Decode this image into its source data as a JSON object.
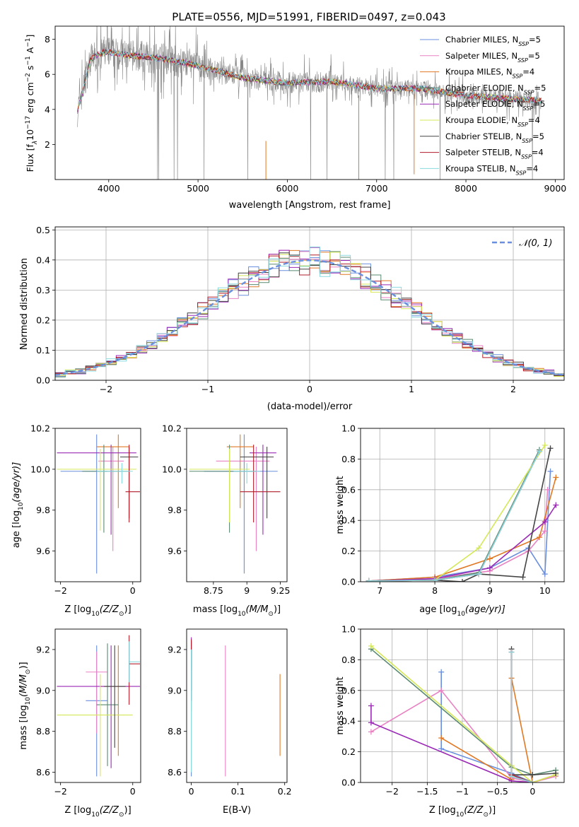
{
  "figure": {
    "title": "PLATE=0556, MJD=51991, FIBERID=0497, z=0.043"
  },
  "series_colors": [
    "#6a8fde",
    "#e882c3",
    "#e17924",
    "#5a8a72",
    "#9a2ab5",
    "#d6e85a",
    "#444444",
    "#b01c28",
    "#8ad9e0"
  ],
  "chart_data": [
    {
      "id": "spectrum",
      "type": "line",
      "xlabel": "wavelength [Angstrom, rest frame]",
      "ylabel": "Flux [f_λ10^-17 erg cm^-2 s^-1 A^-1]",
      "ylabel_parts": {
        "a": "Flux [f",
        "b": "λ",
        "c": "10",
        "d": "−17",
        "e": " erg cm",
        "f": "−2",
        "g": " s",
        "h": "−1",
        "i": " A",
        "j": "−1",
        "k": "]"
      },
      "xlim": [
        3400,
        9100
      ],
      "ylim": [
        0,
        8.75
      ],
      "xticks": [
        4000,
        5000,
        6000,
        7000,
        8000,
        9000
      ],
      "yticks": [
        2,
        4,
        6,
        8
      ],
      "observed_color": "#888888",
      "continuum_knots": {
        "x": [
          3650,
          3800,
          3950,
          4200,
          4600,
          5000,
          5500,
          6000,
          6500,
          7000,
          7500,
          8000,
          8500,
          8850
        ],
        "y": [
          3.9,
          6.9,
          7.3,
          7.1,
          6.9,
          6.5,
          5.8,
          5.5,
          5.6,
          5.2,
          5.2,
          4.8,
          4.6,
          4.5
        ]
      },
      "legend": [
        {
          "label": "Chabrier MILES, N",
          "n": "5"
        },
        {
          "label": "Salpeter MILES, N",
          "n": "5"
        },
        {
          "label": "Kroupa MILES, N",
          "n": "4"
        },
        {
          "label": "Chabrier ELODIE, N",
          "n": "5"
        },
        {
          "label": "Salpeter ELODIE, N",
          "n": "5"
        },
        {
          "label": "Kroupa ELODIE, N",
          "n": "4"
        },
        {
          "label": "Chabrier STELIB, N",
          "n": "5"
        },
        {
          "label": "Salpeter STELIB, N",
          "n": "4"
        },
        {
          "label": "Kroupa STELIB, N",
          "n": "4"
        }
      ],
      "legend_sub": "SSP",
      "legend_placement": "upper right"
    },
    {
      "id": "residuals",
      "type": "histogram",
      "xlabel": "(data-model)/error",
      "ylabel": "Normed distribution",
      "xlim": [
        -2.5,
        2.5
      ],
      "ylim": [
        0,
        0.51
      ],
      "xticks": [
        -2,
        -1,
        0,
        1,
        2
      ],
      "yticks": [
        0.0,
        0.1,
        0.2,
        0.3,
        0.4,
        0.5
      ],
      "grid": true,
      "bin_width": 0.1,
      "reference": {
        "label": "𝒩(0, 1)",
        "mean": 0,
        "sigma": 1
      },
      "legend_placement": "upper right"
    },
    {
      "id": "age_vs_Z",
      "type": "errorbar",
      "xlabel": "Z [log10(Z/Z⊙)]",
      "ylabel": "age  [log10(age/yr)]",
      "xlabel_parts": {
        "a": "Z [log",
        "b": "10",
        "c": "(Z/Z",
        "d": "⊙",
        "e": ")]"
      },
      "ylabel_parts": {
        "a": "age  [log",
        "b": "10",
        "c": "(age/yr)]"
      },
      "xlim": [
        -2.15,
        0.22
      ],
      "ylim": [
        9.45,
        10.2
      ],
      "xticks": [
        -2,
        0
      ],
      "yticks": [
        9.6,
        9.8,
        10.0,
        10.2
      ],
      "points": [
        {
          "x": -1.0,
          "xerr": [
            1.0,
            0.3
          ],
          "y": 9.99,
          "yerr": [
            0.5,
            0.18
          ]
        },
        {
          "x": -0.55,
          "xerr": [
            0.4,
            0.3
          ],
          "y": 10.04,
          "yerr": [
            0.44,
            0.07
          ]
        },
        {
          "x": -0.4,
          "xerr": [
            0.6,
            0.3
          ],
          "y": 10.11,
          "yerr": [
            0.3,
            0.06
          ]
        },
        {
          "x": -0.8,
          "xerr": [
            0.6,
            0.7
          ],
          "y": 9.99,
          "yerr": [
            0.3,
            0.13
          ]
        },
        {
          "x": -0.6,
          "xerr": [
            1.5,
            0.7
          ],
          "y": 10.08,
          "yerr": [
            0.4,
            0.04
          ]
        },
        {
          "x": -0.9,
          "xerr": [
            1.2,
            1.0
          ],
          "y": 10.0,
          "yerr": [
            0.3,
            0.1
          ]
        },
        {
          "x": -0.1,
          "xerr": [
            0.25,
            0.25
          ],
          "y": 10.06,
          "yerr": [
            0.3,
            0.05
          ]
        },
        {
          "x": -0.1,
          "xerr": [
            0.1,
            0.3
          ],
          "y": 9.89,
          "yerr": [
            0.15,
            0.23
          ]
        },
        {
          "x": -0.3,
          "xerr": [
            0.7,
            0.3
          ],
          "y": 9.99,
          "yerr": [
            0.06,
            0.04
          ]
        }
      ]
    },
    {
      "id": "age_vs_mass",
      "type": "errorbar",
      "xlabel": "mass [log10(M/M⊙)]",
      "ylabel": "",
      "xlabel_parts": {
        "a": "mass [log",
        "b": "10",
        "c": "(M/M",
        "d": "⊙",
        "e": ")]"
      },
      "xlim": [
        8.55,
        9.3
      ],
      "ylim": [
        9.45,
        10.2
      ],
      "xticks": [
        8.75,
        9.0,
        9.25
      ],
      "yticks": [
        9.6,
        9.8,
        10.0,
        10.2
      ],
      "points": [
        {
          "x": 8.98,
          "xerr": [
            0.3,
            0.25
          ],
          "y": 9.99,
          "yerr": [
            0.5,
            0.18
          ]
        },
        {
          "x": 9.07,
          "xerr": [
            0.3,
            0.1
          ],
          "y": 10.04,
          "yerr": [
            0.44,
            0.07
          ]
        },
        {
          "x": 8.95,
          "xerr": [
            0.1,
            0.1
          ],
          "y": 10.11,
          "yerr": [
            0.3,
            0.06
          ]
        },
        {
          "x": 8.87,
          "xerr": [
            0.3,
            0.2
          ],
          "y": 9.99,
          "yerr": [
            0.3,
            0.13
          ]
        },
        {
          "x": 9.12,
          "xerr": [
            0.1,
            0.1
          ],
          "y": 10.08,
          "yerr": [
            0.4,
            0.04
          ]
        },
        {
          "x": 8.87,
          "xerr": [
            0.3,
            0.15
          ],
          "y": 10.0,
          "yerr": [
            0.26,
            0.1
          ]
        },
        {
          "x": 9.15,
          "xerr": [
            0.2,
            0.05
          ],
          "y": 10.06,
          "yerr": [
            0.3,
            0.05
          ]
        },
        {
          "x": 9.05,
          "xerr": [
            0.1,
            0.2
          ],
          "y": 9.89,
          "yerr": [
            0.15,
            0.23
          ]
        },
        {
          "x": 9.0,
          "xerr": [
            0.1,
            0.1
          ],
          "y": 9.99,
          "yerr": [
            0.06,
            0.04
          ]
        }
      ]
    },
    {
      "id": "mass_weight_vs_age",
      "type": "line",
      "xlabel": "age  [log10(age/yr)]",
      "ylabel": "mass weight",
      "xlabel_parts": {
        "a": "age  [log",
        "b": "10",
        "c": "(age/yr)]"
      },
      "xlim": [
        6.65,
        10.35
      ],
      "ylim": [
        0,
        1.0
      ],
      "xticks": [
        7,
        8,
        9,
        10
      ],
      "yticks": [
        0.0,
        0.2,
        0.4,
        0.6,
        0.8,
        1.0
      ],
      "grid": true,
      "series": [
        {
          "x": [
            6.8,
            8.0,
            9.0,
            9.7,
            10.0,
            10.1
          ],
          "y": [
            0.005,
            0.03,
            0.09,
            0.22,
            0.05,
            0.72
          ]
        },
        {
          "x": [
            6.8,
            8.0,
            9.0,
            9.7,
            10.0,
            10.05
          ],
          "y": [
            0.005,
            0.02,
            0.07,
            0.2,
            0.33,
            0.6
          ]
        },
        {
          "x": [
            6.8,
            8.0,
            9.0,
            9.9,
            10.2
          ],
          "y": [
            0.005,
            0.03,
            0.15,
            0.29,
            0.68
          ]
        },
        {
          "x": [
            6.8,
            8.0,
            8.8,
            9.9
          ],
          "y": [
            0.005,
            0.01,
            0.06,
            0.86
          ]
        },
        {
          "x": [
            6.8,
            8.0,
            9.0,
            10.0,
            10.2
          ],
          "y": [
            0.005,
            0.02,
            0.09,
            0.39,
            0.5
          ]
        },
        {
          "x": [
            6.8,
            8.0,
            8.8,
            10.0
          ],
          "y": [
            0.005,
            0.01,
            0.22,
            0.89
          ]
        },
        {
          "x": [
            6.8,
            8.0,
            8.5,
            8.8,
            9.6,
            10.1
          ],
          "y": [
            0.005,
            0.01,
            0.0,
            0.05,
            0.03,
            0.87
          ]
        },
        {
          "x": [
            6.8,
            8.0,
            8.8,
            9.9
          ],
          "y": [
            0.005,
            0.01,
            0.05,
            0.85
          ]
        },
        {
          "x": [
            6.8,
            8.0,
            8.8,
            9.9
          ],
          "y": [
            0.005,
            0.01,
            0.05,
            0.85
          ]
        }
      ]
    },
    {
      "id": "mass_vs_Z",
      "type": "errorbar",
      "xlabel": "Z [log10(Z/Z⊙)]",
      "ylabel": "mass [log10(M/M⊙)]",
      "xlabel_parts": {
        "a": "Z [log",
        "b": "10",
        "c": "(Z/Z",
        "d": "⊙",
        "e": ")]"
      },
      "ylabel_parts": {
        "a": "mass [log",
        "b": "10",
        "c": "(M/M",
        "d": "⊙",
        "e": ")]"
      },
      "xlim": [
        -2.15,
        0.22
      ],
      "ylim": [
        8.55,
        9.3
      ],
      "xticks": [
        -2,
        0
      ],
      "yticks": [
        8.6,
        8.8,
        9.0,
        9.2
      ],
      "points": [
        {
          "x": -1.0,
          "xerr": [
            0.3,
            0.3
          ],
          "y": 8.95,
          "yerr": [
            0.37,
            0.27
          ]
        },
        {
          "x": -1.0,
          "xerr": [
            0.3,
            0.3
          ],
          "y": 9.09,
          "yerr": [
            0.3,
            0.1
          ]
        },
        {
          "x": -0.4,
          "xerr": [
            0.5,
            0.3
          ],
          "y": 9.02,
          "yerr": [
            0.34,
            0.2
          ]
        },
        {
          "x": -0.7,
          "xerr": [
            0.3,
            0.3
          ],
          "y": 8.93,
          "yerr": [
            0.3,
            0.3
          ]
        },
        {
          "x": -0.6,
          "xerr": [
            1.5,
            0.8
          ],
          "y": 9.02,
          "yerr": [
            0.4,
            0.2
          ]
        },
        {
          "x": -0.9,
          "xerr": [
            1.2,
            0.9
          ],
          "y": 8.88,
          "yerr": [
            0.3,
            0.2
          ]
        },
        {
          "x": -0.5,
          "xerr": [
            0.3,
            0.3
          ],
          "y": 9.02,
          "yerr": [
            0.3,
            0.2
          ]
        },
        {
          "x": -0.1,
          "xerr": [
            0.0,
            0.3
          ],
          "y": 9.13,
          "yerr": [
            0.2,
            0.14
          ]
        },
        {
          "x": -0.1,
          "xerr": [
            0.0,
            0.3
          ],
          "y": 9.14,
          "yerr": [
            0.1,
            0.1
          ]
        }
      ]
    },
    {
      "id": "mass_vs_ebv",
      "type": "errorbar",
      "xlabel": "E(B-V)",
      "ylabel": "",
      "xlim": [
        -0.01,
        0.205
      ],
      "ylim": [
        8.55,
        9.3
      ],
      "xticks": [
        0.0,
        0.1,
        0.2
      ],
      "yticks": [
        8.6,
        8.8,
        9.0,
        9.2
      ],
      "points": [
        {
          "x": 0.0,
          "xerr": [
            0,
            0
          ],
          "y": 8.9,
          "yerr": [
            0.32,
            0.34
          ]
        },
        {
          "x": 0.073,
          "xerr": [
            0,
            0
          ],
          "y": 8.9,
          "yerr": [
            0.32,
            0.32
          ]
        },
        {
          "x": 0.19,
          "xerr": [
            0,
            0
          ],
          "y": 8.88,
          "yerr": [
            0.2,
            0.2
          ]
        },
        {
          "x": 0.0,
          "xerr": [
            0,
            0
          ],
          "y": 9.1,
          "yerr": [
            0.2,
            0.14
          ]
        },
        {
          "x": 0.0,
          "xerr": [
            0,
            0
          ],
          "y": 9.2,
          "yerr": [
            0.1,
            0.06
          ]
        },
        {
          "x": 0.0,
          "xerr": [
            0,
            0
          ],
          "y": 8.9,
          "yerr": [
            0.3,
            0.2
          ]
        },
        {
          "x": 0.0,
          "xerr": [
            0,
            0
          ],
          "y": 9.1,
          "yerr": [
            0.1,
            0.1
          ]
        },
        {
          "x": 0.0,
          "xerr": [
            0,
            0
          ],
          "y": 9.1,
          "yerr": [
            0.15,
            0.15
          ]
        },
        {
          "x": 0.0,
          "xerr": [
            0,
            0
          ],
          "y": 9.0,
          "yerr": [
            0.4,
            0.2
          ]
        }
      ]
    },
    {
      "id": "mass_weight_vs_Z",
      "type": "line",
      "xlabel": "Z [log10(Z/Z⊙)]",
      "ylabel": "mass weight",
      "xlabel_parts": {
        "a": "Z [log",
        "b": "10",
        "c": "(Z/Z",
        "d": "⊙",
        "e": ")]"
      },
      "xlim": [
        -2.45,
        0.45
      ],
      "ylim": [
        0,
        1.0
      ],
      "xticks": [
        -2.0,
        -1.5,
        -1.0,
        -0.5,
        0.0
      ],
      "yticks": [
        0.0,
        0.2,
        0.4,
        0.6,
        0.8,
        1.0
      ],
      "grid": true,
      "series": [
        {
          "x": [
            -1.3,
            -1.3,
            -0.3,
            0.0,
            0.33
          ],
          "y": [
            0.72,
            0.22,
            0.06,
            0.0,
            0.05
          ]
        },
        {
          "x": [
            -2.3,
            -1.3,
            -0.3,
            0.0,
            0.33
          ],
          "y": [
            0.33,
            0.6,
            0.03,
            0.0,
            0.04
          ]
        },
        {
          "x": [
            -1.3,
            -0.3,
            -0.3,
            0.0,
            0.33
          ],
          "y": [
            0.29,
            0.02,
            0.68,
            0.0,
            0.05
          ]
        },
        {
          "x": [
            -2.3,
            -0.3,
            0.0,
            0.33
          ],
          "y": [
            0.87,
            0.1,
            0.05,
            0.08
          ]
        },
        {
          "x": [
            -2.3,
            -2.3,
            -0.3,
            0.0
          ],
          "y": [
            0.5,
            0.39,
            0.01,
            0.0
          ]
        },
        {
          "x": [
            -2.3,
            -0.3,
            0.0,
            0.33
          ],
          "y": [
            0.89,
            0.11,
            0.0,
            0.05
          ]
        },
        {
          "x": [
            -0.3,
            -0.3,
            0.0,
            0.33
          ],
          "y": [
            0.87,
            0.05,
            0.05,
            0.06
          ]
        },
        {
          "x": [
            -0.3,
            -0.3,
            0.0
          ],
          "y": [
            0.85,
            0.05,
            0.0
          ]
        },
        {
          "x": [
            -0.3,
            -0.3,
            0.0
          ],
          "y": [
            0.85,
            0.04,
            0.0
          ]
        }
      ]
    }
  ]
}
